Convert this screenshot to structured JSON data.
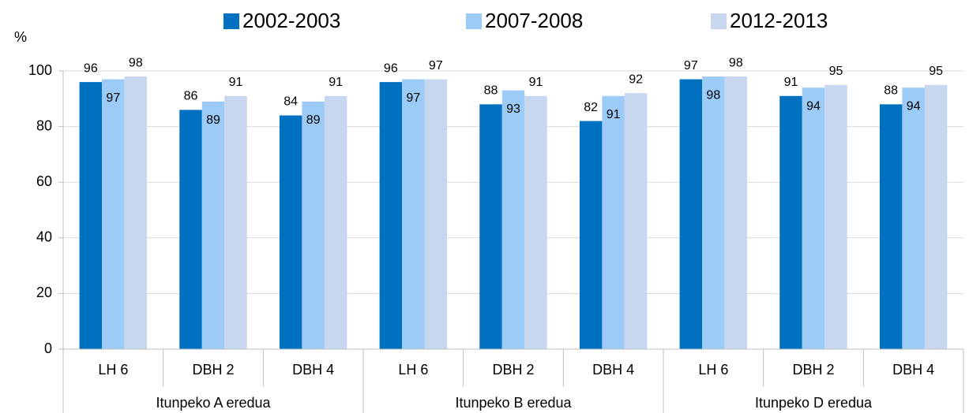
{
  "chart_data": {
    "type": "bar",
    "y_label": "%",
    "categories": [
      "LH 6",
      "DBH 2",
      "DBH 4",
      "LH 6",
      "DBH 2",
      "DBH 4",
      "LH 6",
      "DBH 2",
      "DBH 4"
    ],
    "groups": [
      "Itunpeko A eredua",
      "Itunpeko B eredua",
      "Itunpeko D eredua"
    ],
    "series": [
      {
        "name": "2002-2003",
        "color": "#0070c0",
        "values": [
          96,
          86,
          84,
          96,
          88,
          82,
          97,
          91,
          88
        ]
      },
      {
        "name": "2007-2008",
        "color": "#9ccbf8",
        "values": [
          97,
          89,
          89,
          97,
          93,
          91,
          98,
          94,
          94
        ]
      },
      {
        "name": "2012-2013",
        "color": "#c6d7ef",
        "values": [
          98,
          91,
          91,
          97,
          91,
          92,
          98,
          95,
          95
        ]
      }
    ],
    "ylim": [
      0,
      100
    ],
    "yticks": [
      0,
      20,
      40,
      60,
      80,
      100
    ],
    "grid": true,
    "legend": "top"
  }
}
